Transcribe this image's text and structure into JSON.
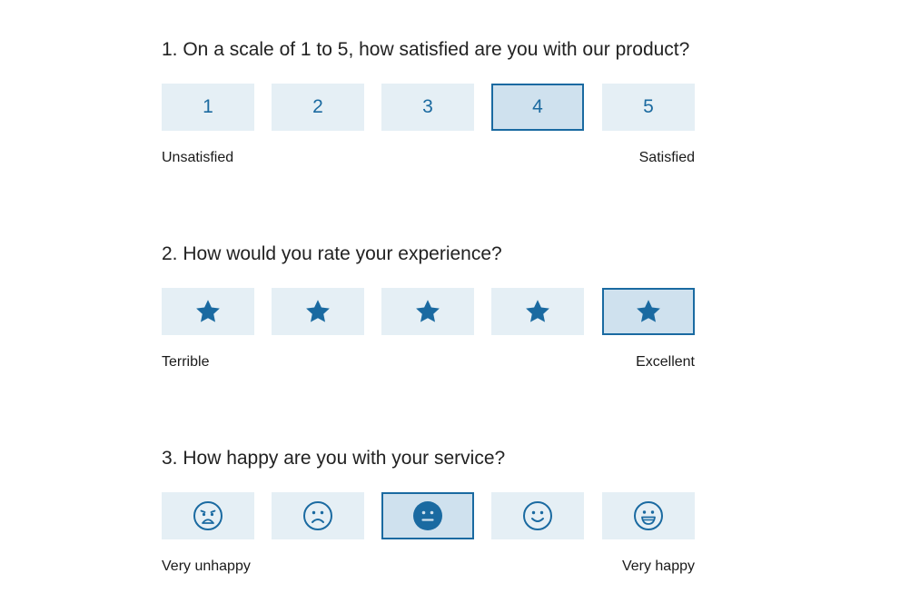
{
  "accent_color": "#1a6aa1",
  "option_bg": "#e5eff5",
  "selected_bg": "#cfe1ee",
  "questions": [
    {
      "title": "1. On a scale of 1 to 5, how satisfied are you with our product?",
      "options": [
        "1",
        "2",
        "3",
        "4",
        "5"
      ],
      "selected": "4",
      "low_label": "Unsatisfied",
      "high_label": "Satisfied"
    },
    {
      "title": "2. How would you rate your experience?",
      "option_icons": [
        "star-icon",
        "star-icon",
        "star-icon",
        "star-icon",
        "star-icon"
      ],
      "selected_index": 5,
      "low_label": "Terrible",
      "high_label": "Excellent"
    },
    {
      "title": "3. How happy are you with your service?",
      "option_icons": [
        "very-unhappy-face-icon",
        "unhappy-face-icon",
        "neutral-face-icon",
        "happy-face-icon",
        "very-happy-face-icon"
      ],
      "selected_index": 3,
      "low_label": "Very unhappy",
      "high_label": "Very happy"
    }
  ]
}
